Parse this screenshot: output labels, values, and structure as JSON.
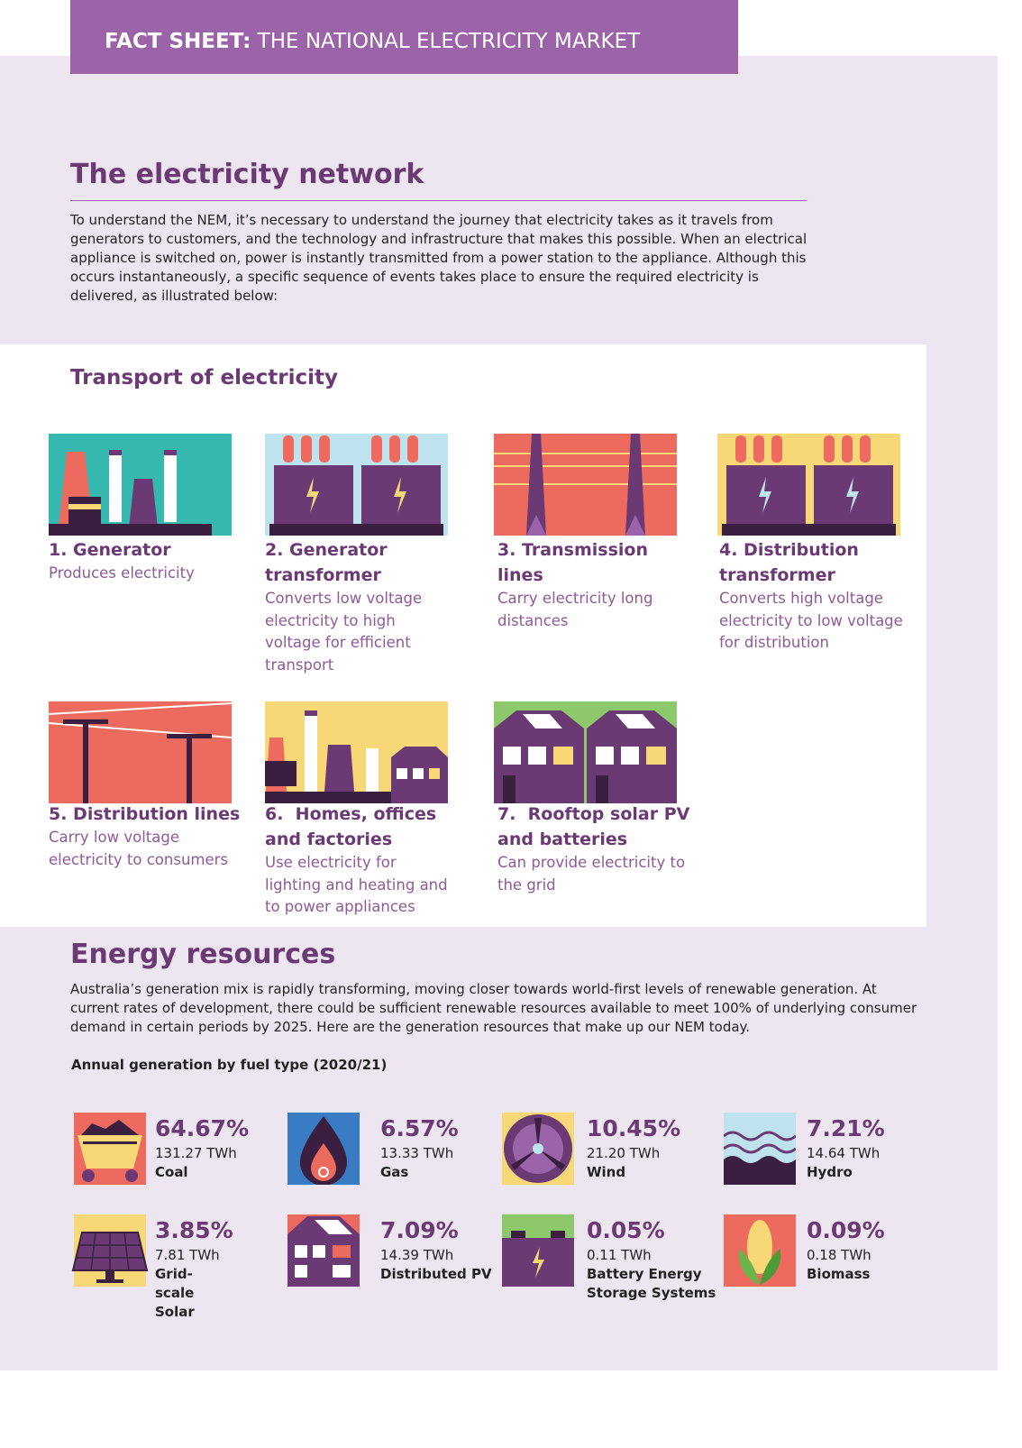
{
  "header": {
    "label": "FACT SHEET:",
    "title": "THE NATIONAL ELECTRICITY MARKET"
  },
  "network": {
    "title": "The electricity network",
    "paragraph": "To understand the NEM, it’s necessary to understand the journey that electricity takes as it travels from generators to customers, and the technology and infrastructure that makes this possible. When an electrical appliance is switched on, power is instantly transmitted from a power station to the appliance. Although this occurs instantaneously, a specific sequence of events takes place to ensure the required electricity is delivered, as illustrated below:"
  },
  "transport": {
    "title": "Transport of electricity",
    "steps": [
      {
        "title": "1. Generator",
        "description": "Produces electricity"
      },
      {
        "title": "2. Generator transformer",
        "description": "Converts low voltage electricity to high voltage for efficient transport"
      },
      {
        "title": "3. Transmission lines",
        "description": "Carry electricity long distances"
      },
      {
        "title": "4. Distribution transformer",
        "description": "Converts high voltage electricity to low voltage for distribution"
      },
      {
        "title": "5. Distribution lines",
        "description": "Carry low voltage electricity to consumers"
      },
      {
        "title": "6.  Homes, offices and factories",
        "description": "Use electricity for lighting and heating and to power appliances"
      },
      {
        "title": "7.  Rooftop solar PV and batteries",
        "description": "Can provide electricity to the grid"
      }
    ]
  },
  "resources": {
    "title": "Energy resources",
    "paragraph": "Australia’s generation mix is rapidly transforming, moving closer towards world-first levels of renewable generation. At current rates of development, there could be sufficient renewable resources available to meet 100% of underlying consumer demand in certain periods by 2025. Here are the generation resources that make up our NEM today.",
    "subtitle": "Annual generation by fuel type (2020/21)",
    "items": [
      {
        "percent": "64.67%",
        "energy": "131.27 TWh",
        "fuel": "Coal"
      },
      {
        "percent": "6.57%",
        "energy": "13.33 TWh",
        "fuel": "Gas"
      },
      {
        "percent": "10.45%",
        "energy": "21.20 TWh",
        "fuel": "Wind"
      },
      {
        "percent": "7.21%",
        "energy": "14.64 TWh",
        "fuel": "Hydro"
      },
      {
        "percent": "3.85%",
        "energy": "7.81 TWh",
        "fuel": "Grid-scale Solar"
      },
      {
        "percent": "7.09%",
        "energy": "14.39 TWh",
        "fuel": "Distributed PV"
      },
      {
        "percent": "0.05%",
        "energy": "0.11 TWh",
        "fuel": "Battery Energy Storage Systems"
      },
      {
        "percent": "0.09%",
        "energy": "0.18 TWh",
        "fuel": "Biomass"
      }
    ]
  }
}
